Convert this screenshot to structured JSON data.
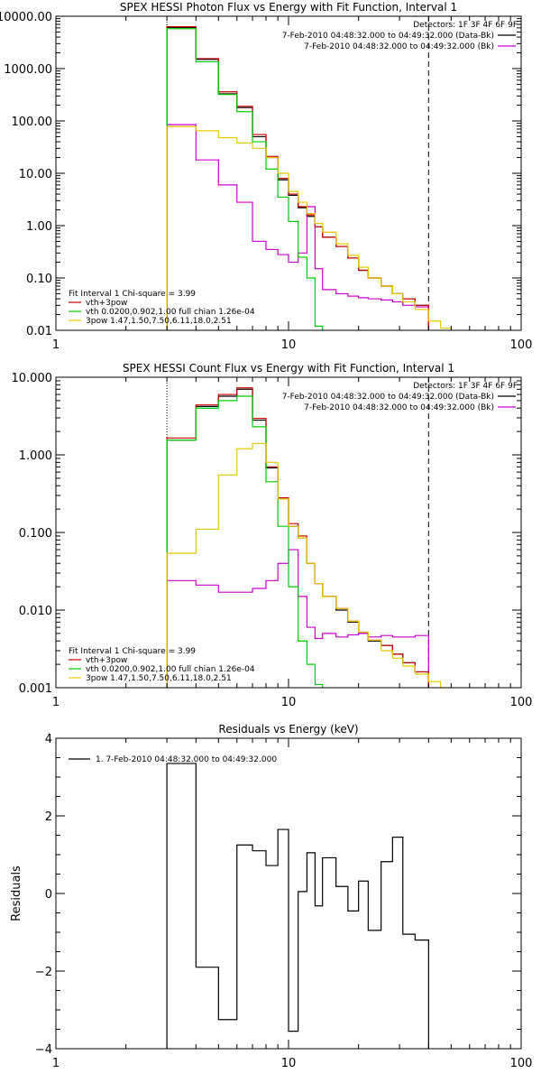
{
  "chart_data": [
    {
      "type": "line",
      "title": "SPEX HESSI Photon Flux vs Energy with Fit Function, Interval 1",
      "xscale": "log",
      "yscale": "log",
      "xlim": [
        1,
        100
      ],
      "ylim": [
        0.01,
        10000
      ],
      "xticks": [
        1,
        10,
        100
      ],
      "xtick_labels": [
        "1",
        "10",
        "100"
      ],
      "yticks": [
        0.01,
        0.1,
        1,
        10,
        100,
        1000,
        10000
      ],
      "ytick_labels": [
        "0.01",
        "0.10",
        "1.00",
        "10.00",
        "100.00",
        "1000.00",
        "10000.00"
      ],
      "annotations": [
        "Detectors: 1F 3F 4F 6F 9F"
      ],
      "vlines": [
        {
          "x": 3,
          "style": "dotted",
          "color": "#000000"
        },
        {
          "x": 40,
          "style": "dashed",
          "color": "#000000"
        }
      ],
      "legend_top": [
        {
          "label": "7-Feb-2010 04:48:32.000 to 04:49:32.000 (Data-Bk)",
          "color": "#000000"
        },
        {
          "label": "7-Feb-2010 04:48:32.000 to 04:49:32.000 (Bk)",
          "color": "#cc00cc"
        }
      ],
      "legend_bottom": {
        "header": "Fit Interval 1   Chi-square = 3.99",
        "entries": [
          {
            "label": "vth+3pow",
            "color": "#cc0000"
          },
          {
            "label": "vth 0.0200,0.902,1.00  full chian 1.26e-04",
            "color": "#00cc00"
          },
          {
            "label": "3pow 1.47,1.50,7.50,6.11,18.0,2.51",
            "color": "#e6c800"
          }
        ]
      },
      "edges": [
        3,
        4,
        5,
        6,
        7,
        8,
        9,
        10,
        11,
        12,
        13,
        14,
        16,
        18,
        20,
        22,
        25,
        28,
        31,
        35,
        40,
        45,
        50
      ],
      "series": [
        {
          "name": "Data-Bk",
          "color": "#000000",
          "values": [
            6100,
            1500,
            330,
            180,
            50,
            20,
            7.5,
            3.8,
            2.2,
            1.5,
            0.95,
            0.6,
            0.4,
            0.24,
            0.14,
            0.1,
            0.07,
            0.05,
            0.04,
            0.03,
            null,
            null
          ]
        },
        {
          "name": "Bk",
          "color": "#cc00cc",
          "values": [
            85,
            18,
            6,
            2.8,
            0.5,
            0.35,
            0.28,
            0.2,
            0.3,
            2.3,
            0.15,
            0.06,
            0.05,
            0.045,
            0.042,
            0.04,
            0.038,
            0.035,
            0.03,
            0.028,
            null,
            null
          ]
        },
        {
          "name": "vth+3pow",
          "color": "#cc0000",
          "values": [
            6300,
            1550,
            360,
            190,
            55,
            21,
            8,
            4,
            2.3,
            1.6,
            0.95,
            0.6,
            0.4,
            0.24,
            0.14,
            0.1,
            0.07,
            0.05,
            0.04,
            0.03,
            null,
            null
          ]
        },
        {
          "name": "vth",
          "color": "#00cc00",
          "values": [
            5800,
            1350,
            320,
            150,
            40,
            12,
            3.5,
            1.2,
            0.25,
            0.1,
            0.012,
            null,
            null,
            null,
            null,
            null,
            null,
            null,
            null,
            null,
            null,
            null
          ]
        },
        {
          "name": "3pow",
          "color": "#e6c800",
          "values": [
            78,
            65,
            48,
            38,
            30,
            20,
            10,
            4.5,
            2.8,
            1.7,
            1.1,
            0.75,
            0.45,
            0.27,
            0.16,
            0.1,
            0.07,
            0.05,
            0.035,
            0.025,
            0.015,
            0.011
          ]
        }
      ]
    },
    {
      "type": "line",
      "title": "SPEX HESSI Count Flux vs Energy with Fit Function, Interval 1",
      "xscale": "log",
      "yscale": "log",
      "xlim": [
        1,
        100
      ],
      "ylim": [
        0.001,
        10
      ],
      "xticks": [
        1,
        10,
        100
      ],
      "xtick_labels": [
        "1",
        "10",
        "100"
      ],
      "yticks": [
        0.001,
        0.01,
        0.1,
        1,
        10
      ],
      "ytick_labels": [
        "0.001",
        "0.010",
        "0.100",
        "1.000",
        "10.000"
      ],
      "annotations": [
        "Detectors: 1F 3F 4F 6F 9F"
      ],
      "vlines": [
        {
          "x": 3,
          "style": "dotted",
          "color": "#000000"
        },
        {
          "x": 40,
          "style": "dashed",
          "color": "#000000"
        }
      ],
      "legend_top": [
        {
          "label": "7-Feb-2010 04:48:32.000 to 04:49:32.000 (Data-Bk)",
          "color": "#000000"
        },
        {
          "label": "7-Feb-2010 04:48:32.000 to 04:49:32.000 (Bk)",
          "color": "#cc00cc"
        }
      ],
      "legend_bottom": {
        "header": "Fit Interval 1   Chi-square = 3.99",
        "entries": [
          {
            "label": "vth+3pow",
            "color": "#cc0000"
          },
          {
            "label": "vth 0.0200,0.902,1.00  full chian 1.26e-04",
            "color": "#00cc00"
          },
          {
            "label": "3pow 1.47,1.50,7.50,6.11,18.0,2.51",
            "color": "#e6c800"
          }
        ]
      },
      "edges": [
        3,
        4,
        5,
        6,
        7,
        8,
        9,
        10,
        11,
        12,
        13,
        14,
        16,
        18,
        20,
        22,
        25,
        28,
        31,
        35,
        40,
        45,
        50,
        55,
        60
      ],
      "series": [
        {
          "name": "Data-Bk",
          "color": "#000000",
          "values": [
            1.55,
            4.2,
            5.7,
            7,
            2.8,
            0.68,
            0.27,
            0.12,
            0.085,
            0.04,
            0.022,
            0.015,
            0.01,
            0.007,
            0.005,
            0.004,
            0.0035,
            0.0027,
            0.0021,
            0.0016,
            null,
            null,
            null,
            null
          ]
        },
        {
          "name": "Bk",
          "color": "#cc00cc",
          "values": [
            0.024,
            0.021,
            0.017,
            0.017,
            0.019,
            0.024,
            0.04,
            0.06,
            0.015,
            0.006,
            0.0043,
            0.005,
            0.0045,
            0.0048,
            0.005,
            0.0045,
            0.0047,
            0.0045,
            0.0045,
            0.0047,
            null,
            null,
            null,
            null
          ]
        },
        {
          "name": "vth+3pow",
          "color": "#cc0000",
          "values": [
            1.65,
            4.4,
            6,
            7.3,
            2.95,
            0.7,
            0.28,
            0.13,
            0.09,
            0.04,
            0.022,
            0.015,
            0.0105,
            0.0072,
            0.0052,
            0.0041,
            0.0035,
            0.0027,
            0.0021,
            0.0016,
            null,
            null,
            null,
            null
          ]
        },
        {
          "name": "vth",
          "color": "#00cc00",
          "values": [
            1.55,
            4,
            5,
            5.7,
            2.3,
            0.45,
            0.12,
            0.02,
            0.004,
            0.002,
            0.0011,
            null,
            null,
            null,
            null,
            null,
            null,
            null,
            null,
            null,
            null,
            null,
            null,
            null
          ]
        },
        {
          "name": "3pow",
          "color": "#e6c800",
          "values": [
            0.054,
            0.11,
            0.55,
            1.2,
            1.4,
            0.8,
            0.27,
            0.12,
            0.085,
            0.04,
            0.022,
            0.015,
            0.0105,
            0.0072,
            0.0052,
            0.0041,
            0.003,
            0.0024,
            0.0019,
            0.0015,
            0.0012,
            0.001,
            0.0009,
            0.0008
          ]
        }
      ]
    },
    {
      "type": "line",
      "title": "Residuals vs Energy (keV)",
      "ylabel": "Residuals",
      "xscale": "log",
      "yscale": "linear",
      "xlim": [
        1,
        100
      ],
      "ylim": [
        -4,
        4
      ],
      "xticks": [
        1,
        10,
        100
      ],
      "xtick_labels": [
        "1",
        "10",
        "100"
      ],
      "yticks": [
        -4,
        -2,
        0,
        2,
        4
      ],
      "ytick_labels": [
        "−4",
        "−2",
        "0",
        "2",
        "4"
      ],
      "legend_top": [
        {
          "label": "1.  7-Feb-2010 04:48:32.000 to 04:49:32.000",
          "color": "#000000"
        }
      ],
      "edges": [
        3,
        4,
        5,
        6,
        7,
        8,
        9,
        10,
        11,
        12,
        13,
        14,
        16,
        18,
        20,
        22,
        25,
        28,
        31,
        35,
        40
      ],
      "series": [
        {
          "name": "1",
          "color": "#000000",
          "values": [
            3.35,
            -1.9,
            -3.25,
            1.25,
            1.1,
            0.72,
            1.65,
            -3.55,
            0.05,
            1.05,
            -0.32,
            0.92,
            0.18,
            -0.45,
            0.32,
            -0.95,
            0.82,
            1.45,
            -1.05,
            -1.2
          ]
        }
      ]
    }
  ]
}
